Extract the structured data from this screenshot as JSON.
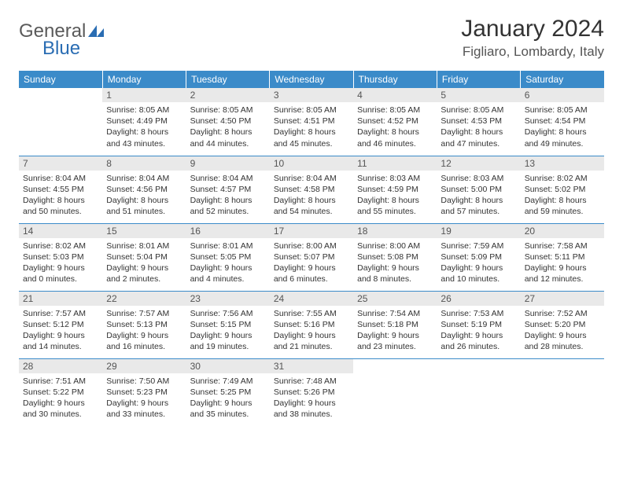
{
  "logo": {
    "text1": "General",
    "text2": "Blue"
  },
  "title": "January 2024",
  "location": "Figliaro, Lombardy, Italy",
  "theme": {
    "header_bg": "#3b8bc9",
    "header_fg": "#ffffff",
    "daynum_bg": "#e9e9e9",
    "border_color": "#3b8bc9",
    "text_color": "#333333"
  },
  "weekdays": [
    "Sunday",
    "Monday",
    "Tuesday",
    "Wednesday",
    "Thursday",
    "Friday",
    "Saturday"
  ],
  "weeks": [
    [
      {
        "n": "",
        "sr": "",
        "ss": "",
        "dl": ""
      },
      {
        "n": "1",
        "sr": "Sunrise: 8:05 AM",
        "ss": "Sunset: 4:49 PM",
        "dl": "Daylight: 8 hours and 43 minutes."
      },
      {
        "n": "2",
        "sr": "Sunrise: 8:05 AM",
        "ss": "Sunset: 4:50 PM",
        "dl": "Daylight: 8 hours and 44 minutes."
      },
      {
        "n": "3",
        "sr": "Sunrise: 8:05 AM",
        "ss": "Sunset: 4:51 PM",
        "dl": "Daylight: 8 hours and 45 minutes."
      },
      {
        "n": "4",
        "sr": "Sunrise: 8:05 AM",
        "ss": "Sunset: 4:52 PM",
        "dl": "Daylight: 8 hours and 46 minutes."
      },
      {
        "n": "5",
        "sr": "Sunrise: 8:05 AM",
        "ss": "Sunset: 4:53 PM",
        "dl": "Daylight: 8 hours and 47 minutes."
      },
      {
        "n": "6",
        "sr": "Sunrise: 8:05 AM",
        "ss": "Sunset: 4:54 PM",
        "dl": "Daylight: 8 hours and 49 minutes."
      }
    ],
    [
      {
        "n": "7",
        "sr": "Sunrise: 8:04 AM",
        "ss": "Sunset: 4:55 PM",
        "dl": "Daylight: 8 hours and 50 minutes."
      },
      {
        "n": "8",
        "sr": "Sunrise: 8:04 AM",
        "ss": "Sunset: 4:56 PM",
        "dl": "Daylight: 8 hours and 51 minutes."
      },
      {
        "n": "9",
        "sr": "Sunrise: 8:04 AM",
        "ss": "Sunset: 4:57 PM",
        "dl": "Daylight: 8 hours and 52 minutes."
      },
      {
        "n": "10",
        "sr": "Sunrise: 8:04 AM",
        "ss": "Sunset: 4:58 PM",
        "dl": "Daylight: 8 hours and 54 minutes."
      },
      {
        "n": "11",
        "sr": "Sunrise: 8:03 AM",
        "ss": "Sunset: 4:59 PM",
        "dl": "Daylight: 8 hours and 55 minutes."
      },
      {
        "n": "12",
        "sr": "Sunrise: 8:03 AM",
        "ss": "Sunset: 5:00 PM",
        "dl": "Daylight: 8 hours and 57 minutes."
      },
      {
        "n": "13",
        "sr": "Sunrise: 8:02 AM",
        "ss": "Sunset: 5:02 PM",
        "dl": "Daylight: 8 hours and 59 minutes."
      }
    ],
    [
      {
        "n": "14",
        "sr": "Sunrise: 8:02 AM",
        "ss": "Sunset: 5:03 PM",
        "dl": "Daylight: 9 hours and 0 minutes."
      },
      {
        "n": "15",
        "sr": "Sunrise: 8:01 AM",
        "ss": "Sunset: 5:04 PM",
        "dl": "Daylight: 9 hours and 2 minutes."
      },
      {
        "n": "16",
        "sr": "Sunrise: 8:01 AM",
        "ss": "Sunset: 5:05 PM",
        "dl": "Daylight: 9 hours and 4 minutes."
      },
      {
        "n": "17",
        "sr": "Sunrise: 8:00 AM",
        "ss": "Sunset: 5:07 PM",
        "dl": "Daylight: 9 hours and 6 minutes."
      },
      {
        "n": "18",
        "sr": "Sunrise: 8:00 AM",
        "ss": "Sunset: 5:08 PM",
        "dl": "Daylight: 9 hours and 8 minutes."
      },
      {
        "n": "19",
        "sr": "Sunrise: 7:59 AM",
        "ss": "Sunset: 5:09 PM",
        "dl": "Daylight: 9 hours and 10 minutes."
      },
      {
        "n": "20",
        "sr": "Sunrise: 7:58 AM",
        "ss": "Sunset: 5:11 PM",
        "dl": "Daylight: 9 hours and 12 minutes."
      }
    ],
    [
      {
        "n": "21",
        "sr": "Sunrise: 7:57 AM",
        "ss": "Sunset: 5:12 PM",
        "dl": "Daylight: 9 hours and 14 minutes."
      },
      {
        "n": "22",
        "sr": "Sunrise: 7:57 AM",
        "ss": "Sunset: 5:13 PM",
        "dl": "Daylight: 9 hours and 16 minutes."
      },
      {
        "n": "23",
        "sr": "Sunrise: 7:56 AM",
        "ss": "Sunset: 5:15 PM",
        "dl": "Daylight: 9 hours and 19 minutes."
      },
      {
        "n": "24",
        "sr": "Sunrise: 7:55 AM",
        "ss": "Sunset: 5:16 PM",
        "dl": "Daylight: 9 hours and 21 minutes."
      },
      {
        "n": "25",
        "sr": "Sunrise: 7:54 AM",
        "ss": "Sunset: 5:18 PM",
        "dl": "Daylight: 9 hours and 23 minutes."
      },
      {
        "n": "26",
        "sr": "Sunrise: 7:53 AM",
        "ss": "Sunset: 5:19 PM",
        "dl": "Daylight: 9 hours and 26 minutes."
      },
      {
        "n": "27",
        "sr": "Sunrise: 7:52 AM",
        "ss": "Sunset: 5:20 PM",
        "dl": "Daylight: 9 hours and 28 minutes."
      }
    ],
    [
      {
        "n": "28",
        "sr": "Sunrise: 7:51 AM",
        "ss": "Sunset: 5:22 PM",
        "dl": "Daylight: 9 hours and 30 minutes."
      },
      {
        "n": "29",
        "sr": "Sunrise: 7:50 AM",
        "ss": "Sunset: 5:23 PM",
        "dl": "Daylight: 9 hours and 33 minutes."
      },
      {
        "n": "30",
        "sr": "Sunrise: 7:49 AM",
        "ss": "Sunset: 5:25 PM",
        "dl": "Daylight: 9 hours and 35 minutes."
      },
      {
        "n": "31",
        "sr": "Sunrise: 7:48 AM",
        "ss": "Sunset: 5:26 PM",
        "dl": "Daylight: 9 hours and 38 minutes."
      },
      {
        "n": "",
        "sr": "",
        "ss": "",
        "dl": ""
      },
      {
        "n": "",
        "sr": "",
        "ss": "",
        "dl": ""
      },
      {
        "n": "",
        "sr": "",
        "ss": "",
        "dl": ""
      }
    ]
  ]
}
